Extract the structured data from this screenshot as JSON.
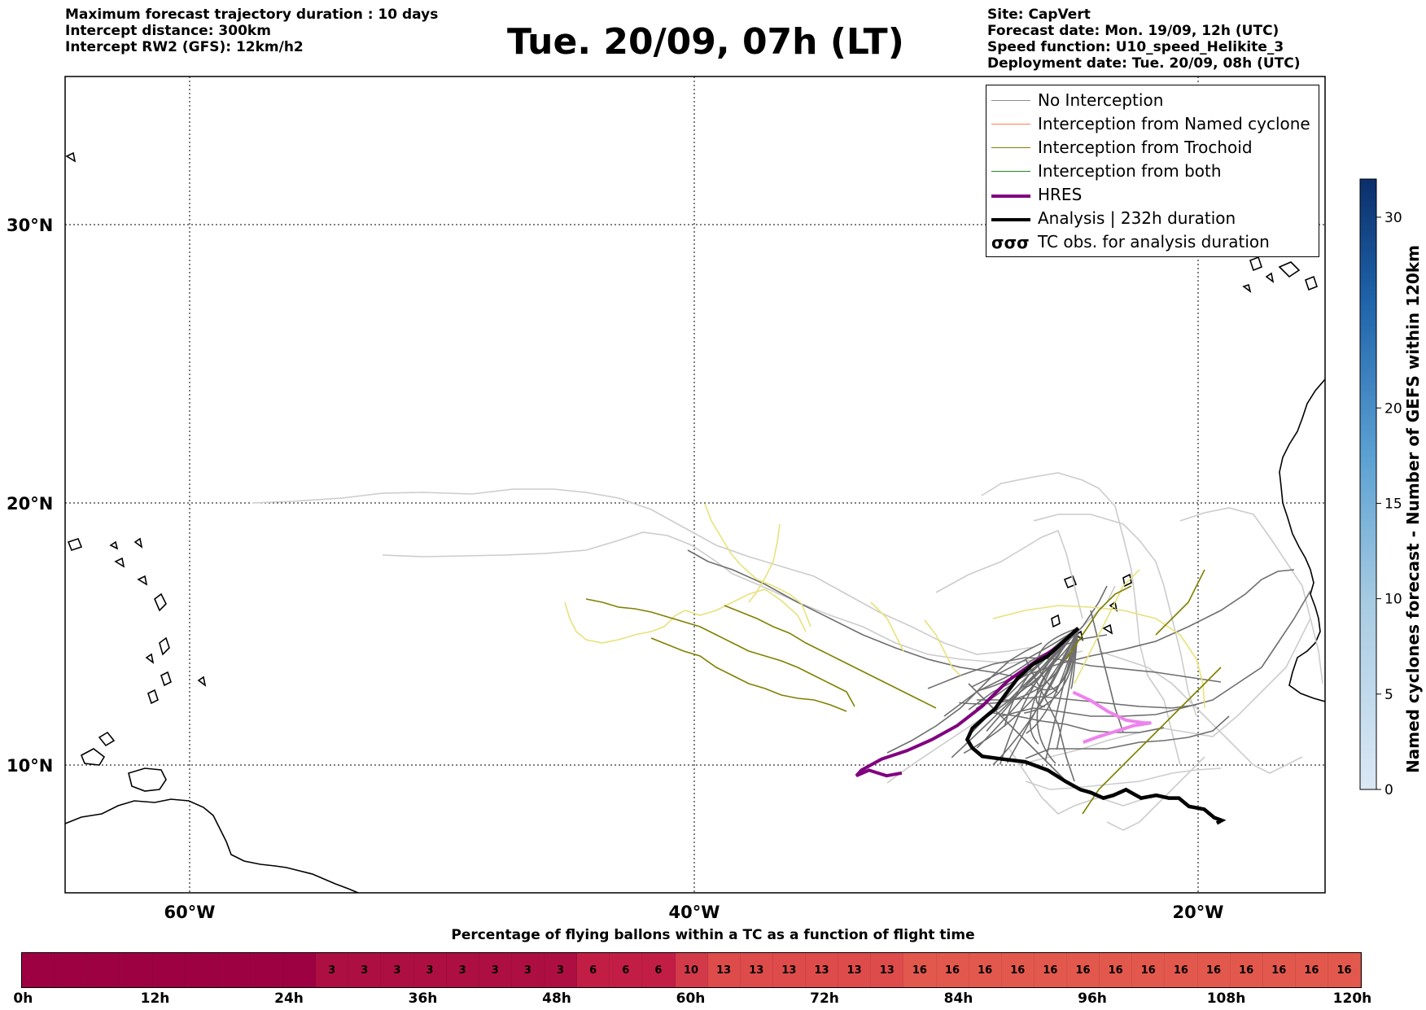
{
  "header_left": [
    "Maximum forecast trajectory duration : 10 days",
    "Intercept distance: 300km",
    "Intercept RW2 (GFS):  12km/h2"
  ],
  "title": "Tue. 20/09, 07h (LT)",
  "header_right": [
    "Site: CapVert",
    "Forecast date: Mon. 19/09, 12h (UTC)",
    "Speed function: U10_speed_Helikite_3",
    "Deployment date: Tue. 20/09, 08h (UTC)"
  ],
  "map": {
    "lat_labels": [
      "30°N",
      "20°N",
      "10°N"
    ],
    "lon_labels": [
      "60°W",
      "40°W",
      "20°W"
    ],
    "lon_range": [
      -65,
      -15
    ],
    "lat_range": [
      5.3,
      34.6
    ]
  },
  "legend": [
    {
      "label": "No Interception",
      "color": "#8c8c8c",
      "style": "line-thin"
    },
    {
      "label": "Interception from Named cyclone",
      "color": "#ff7f50",
      "style": "line-thin"
    },
    {
      "label": "Interception from Trochoid",
      "color": "#808000",
      "style": "line-thin"
    },
    {
      "label": "Interception from both",
      "color": "#228b22",
      "style": "line-thin"
    },
    {
      "label": "HRES",
      "color": "#800080",
      "style": "line-thick"
    },
    {
      "label": "Analysis | 232h duration",
      "color": "#000000",
      "style": "line-thick"
    },
    {
      "label": "TC obs. for analysis duration",
      "color": "#000000",
      "style": "tc-symbol"
    }
  ],
  "colorbar": {
    "label": "Named cyclones forecast - Number of GEFS within 120km",
    "ticks": [
      0,
      5,
      10,
      15,
      20,
      30
    ],
    "max": 32
  },
  "timeline": {
    "caption": "Percentage of flying ballons within a TC as a function of flight time",
    "tick_labels": [
      "0h",
      "12h",
      "24h",
      "36h",
      "48h",
      "60h",
      "72h",
      "84h",
      "96h",
      "108h",
      "120h"
    ],
    "hours_per_cell": 3,
    "cells": [
      0,
      0,
      0,
      0,
      0,
      0,
      0,
      0,
      0,
      3,
      3,
      3,
      3,
      3,
      3,
      3,
      3,
      6,
      6,
      6,
      10,
      13,
      13,
      13,
      13,
      13,
      13,
      16,
      16,
      16,
      16,
      16,
      16,
      16,
      16,
      16,
      16,
      16,
      16,
      16,
      16
    ]
  },
  "chart_data": {
    "type": "map-trajectories",
    "hres": [
      [
        -24.8,
        14.8
      ],
      [
        -25.5,
        14.2
      ],
      [
        -26.5,
        13.6
      ],
      [
        -27.6,
        12.9
      ],
      [
        -28.6,
        12.0
      ],
      [
        -29.6,
        11.3
      ],
      [
        -30.6,
        10.8
      ],
      [
        -31.6,
        10.4
      ],
      [
        -32.6,
        10.1
      ],
      [
        -33.4,
        9.7
      ],
      [
        -33.6,
        9.5
      ],
      [
        -33.1,
        9.7
      ],
      [
        -32.4,
        9.5
      ],
      [
        -31.8,
        9.6
      ]
    ],
    "hres_pink": [
      [
        -25.0,
        12.5
      ],
      [
        -24.3,
        12.2
      ],
      [
        -23.6,
        11.8
      ],
      [
        -22.9,
        11.5
      ],
      [
        -22.2,
        11.4
      ],
      [
        -21.9,
        11.4
      ],
      [
        -22.6,
        11.3
      ],
      [
        -23.3,
        11.1
      ],
      [
        -24.0,
        10.9
      ],
      [
        -24.6,
        10.7
      ]
    ],
    "analysis": [
      [
        -24.8,
        14.8
      ],
      [
        -25.4,
        14.3
      ],
      [
        -26.0,
        13.8
      ],
      [
        -26.6,
        13.5
      ],
      [
        -27.2,
        13.0
      ],
      [
        -27.7,
        12.4
      ],
      [
        -28.1,
        11.9
      ],
      [
        -28.5,
        11.6
      ],
      [
        -29.0,
        11.2
      ],
      [
        -29.2,
        10.8
      ],
      [
        -29.0,
        10.5
      ],
      [
        -28.6,
        10.2
      ],
      [
        -27.8,
        10.1
      ],
      [
        -26.9,
        10.0
      ],
      [
        -26.0,
        9.7
      ],
      [
        -25.3,
        9.3
      ],
      [
        -24.7,
        9.0
      ],
      [
        -24.3,
        8.9
      ],
      [
        -23.8,
        8.7
      ],
      [
        -23.4,
        8.8
      ],
      [
        -22.9,
        9.0
      ],
      [
        -22.3,
        8.7
      ],
      [
        -21.7,
        8.8
      ],
      [
        -21.2,
        8.7
      ],
      [
        -20.8,
        8.7
      ],
      [
        -20.4,
        8.4
      ],
      [
        -19.8,
        8.3
      ],
      [
        -19.4,
        8.0
      ],
      [
        -19.1,
        7.9
      ],
      [
        -19.3,
        7.8
      ]
    ],
    "named_series": [
      "No Interception",
      "Interception from Trochoid",
      "HRES",
      "Analysis"
    ]
  }
}
